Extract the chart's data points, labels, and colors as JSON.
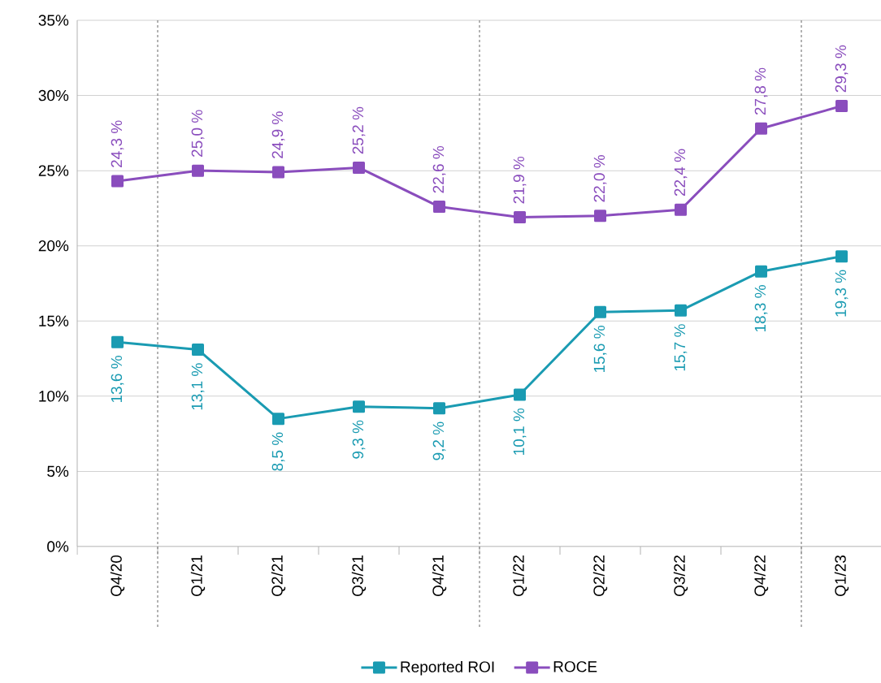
{
  "chart_data": {
    "type": "line",
    "categories": [
      "Q4/20",
      "Q1/21",
      "Q2/21",
      "Q3/21",
      "Q4/21",
      "Q1/22",
      "Q2/22",
      "Q3/22",
      "Q4/22",
      "Q1/23"
    ],
    "series": [
      {
        "name": "Reported ROI",
        "color": "#1a9bb2",
        "values": [
          13.6,
          13.1,
          8.5,
          9.3,
          9.2,
          10.1,
          15.6,
          15.7,
          18.3,
          19.3
        ],
        "value_labels": [
          "13,6 %",
          "13,1 %",
          "8,5 %",
          "9,3 %",
          "9,2 %",
          "10,1 %",
          "15,6 %",
          "15,7 %",
          "18,3 %",
          "19,3 %"
        ]
      },
      {
        "name": "ROCE",
        "color": "#8a4dbd",
        "values": [
          24.3,
          25.0,
          24.9,
          25.2,
          22.6,
          21.9,
          22.0,
          22.4,
          27.8,
          29.3
        ],
        "value_labels": [
          "24,3 %",
          "25,0 %",
          "24,9 %",
          "25,2 %",
          "22,6 %",
          "21,9 %",
          "22,0 %",
          "22,4 %",
          "27,8 %",
          "29,3 %"
        ]
      }
    ],
    "ylim": [
      0,
      35
    ],
    "yticks": [
      {
        "value": 0,
        "label": "0%"
      },
      {
        "value": 5,
        "label": "5%"
      },
      {
        "value": 10,
        "label": "10%"
      },
      {
        "value": 15,
        "label": "15%"
      },
      {
        "value": 20,
        "label": "20%"
      },
      {
        "value": 25,
        "label": "25%"
      },
      {
        "value": 30,
        "label": "30%"
      },
      {
        "value": 35,
        "label": "35%"
      }
    ],
    "grid": "y",
    "legend": "bottom",
    "marker": "square",
    "line_style": "solid"
  }
}
